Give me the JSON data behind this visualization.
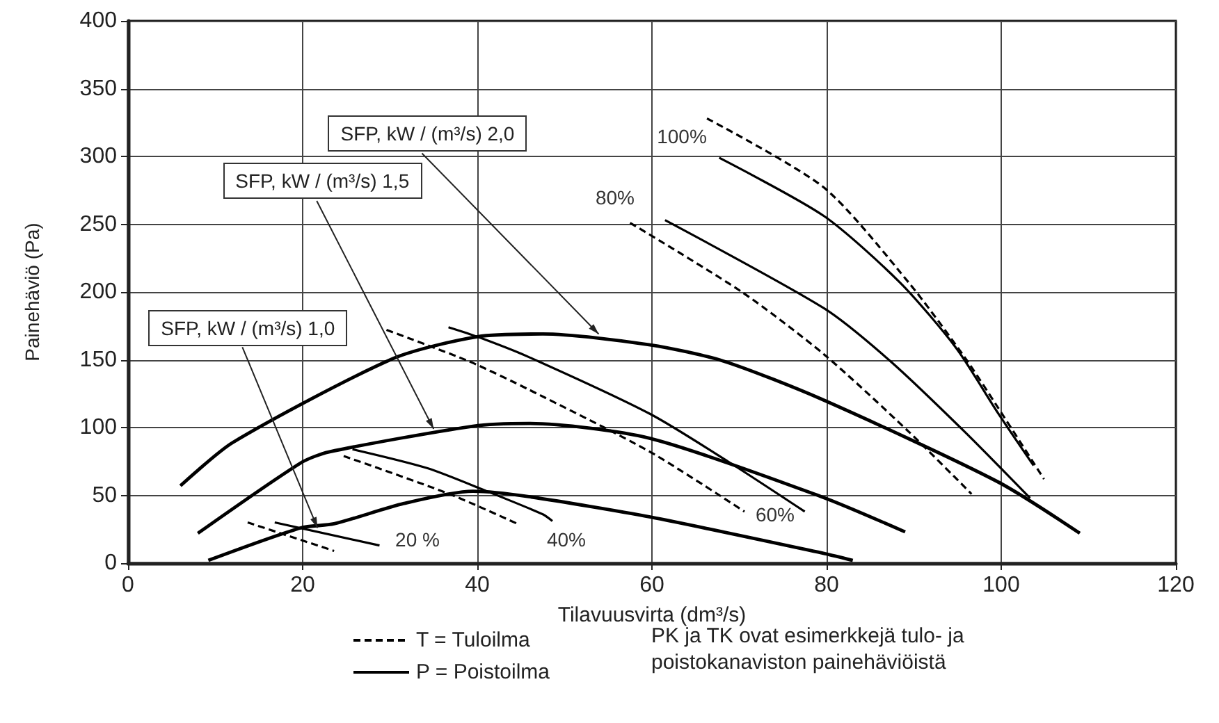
{
  "chart_data": {
    "type": "line",
    "xlabel": "Tilavuusvirta (dm³/s)",
    "ylabel": "Painehäviö (Pa)",
    "xlim": [
      0,
      120
    ],
    "xticks": [
      0,
      20,
      40,
      60,
      80,
      100,
      120
    ],
    "ylim": [
      0,
      400
    ],
    "yticks": [
      0,
      50,
      100,
      150,
      200,
      250,
      300,
      350,
      400
    ],
    "grid": true,
    "legend": "bottom",
    "marker": "none",
    "series": [
      {
        "name": "T = Tuloilma",
        "color": "#000000",
        "line_style": "dashed",
        "x": [
          13.7,
          23.6
        ],
        "values": [
          30,
          9
        ]
      },
      {
        "name": "P = Poistoilma",
        "color": "#000000",
        "line_style": "solid",
        "x": [
          16.8,
          28.8
        ],
        "values": [
          30,
          13
        ]
      },
      {
        "color": "#000000",
        "line_style": "dashed",
        "x": [
          24.7,
          36.8,
          44.6
        ],
        "values": [
          79,
          51,
          29
        ]
      },
      {
        "color": "#000000",
        "line_style": "solid",
        "x": [
          25.7,
          34.3,
          41.1,
          47.5,
          48.6
        ],
        "values": [
          84,
          70,
          53,
          36,
          31
        ]
      },
      {
        "color": "#000000",
        "line_style": "dashed",
        "x": [
          29.6,
          39,
          45.9,
          59.8,
          70.6
        ],
        "values": [
          172,
          149,
          128,
          82,
          38
        ]
      },
      {
        "color": "#000000",
        "line_style": "solid",
        "x": [
          36.7,
          40,
          45.9,
          59.8,
          68.7,
          77.5
        ],
        "values": [
          174,
          167,
          152,
          110,
          75,
          38
        ]
      },
      {
        "color": "#000000",
        "line_style": "dashed",
        "x": [
          57.5,
          70.3,
          79.7,
          89.4,
          96.6
        ],
        "values": [
          251,
          200,
          154,
          97,
          51
        ]
      },
      {
        "color": "#000000",
        "line_style": "solid",
        "x": [
          61.5,
          79.7,
          87.3,
          95.8,
          103.3
        ],
        "values": [
          253,
          188,
          149,
          97,
          48
        ]
      },
      {
        "color": "#000000",
        "line_style": "dashed",
        "x": [
          66.3,
          79.7,
          89.4,
          95.8,
          99.6,
          104.9
        ],
        "values": [
          328,
          277,
          207,
          152,
          115,
          62
        ]
      },
      {
        "color": "#000000",
        "line_style": "solid",
        "x": [
          67.7,
          79.7,
          88.4,
          94.8,
          99.6,
          103.7
        ],
        "values": [
          299,
          256,
          207,
          159,
          111,
          72
        ]
      },
      {
        "color": "#000000",
        "line_style": "solid",
        "x": [
          9.2,
          19.8,
          23.6,
          31.6,
          39.5,
          45.9,
          59.8,
          79.8,
          83
        ],
        "values": [
          2,
          26,
          29,
          44,
          53,
          49,
          34,
          7,
          2
        ]
      },
      {
        "color": "#000000",
        "line_style": "solid",
        "x": [
          8,
          19.8,
          23,
          39.5,
          45.9,
          59.8,
          79.4,
          89
        ],
        "values": [
          22,
          74,
          82,
          101,
          103,
          92,
          49,
          23
        ]
      },
      {
        "color": "#000000",
        "line_style": "solid",
        "x": [
          6,
          12,
          30.4,
          40,
          47.5,
          59.8,
          68.2,
          79.4,
          99.6,
          109
        ],
        "values": [
          57,
          89,
          151,
          167,
          169,
          161,
          149,
          121,
          60,
          22
        ]
      }
    ],
    "annotations": [
      "20 %",
      "40%",
      "60%",
      "80%",
      "100%",
      {
        "text": "SFP, kW / (m³/s) 1,0",
        "x": 21.7,
        "y": 26
      },
      {
        "text": "SFP, kW / (m³/s) 1,5",
        "x": 35,
        "y": 99
      },
      {
        "text": "SFP, kW / (m³/s) 2,0",
        "x": 53.9,
        "y": 169
      },
      "PK ja TK ovat esimerkkejä tulo- ja poistokanaviston painehäviöistä"
    ]
  }
}
